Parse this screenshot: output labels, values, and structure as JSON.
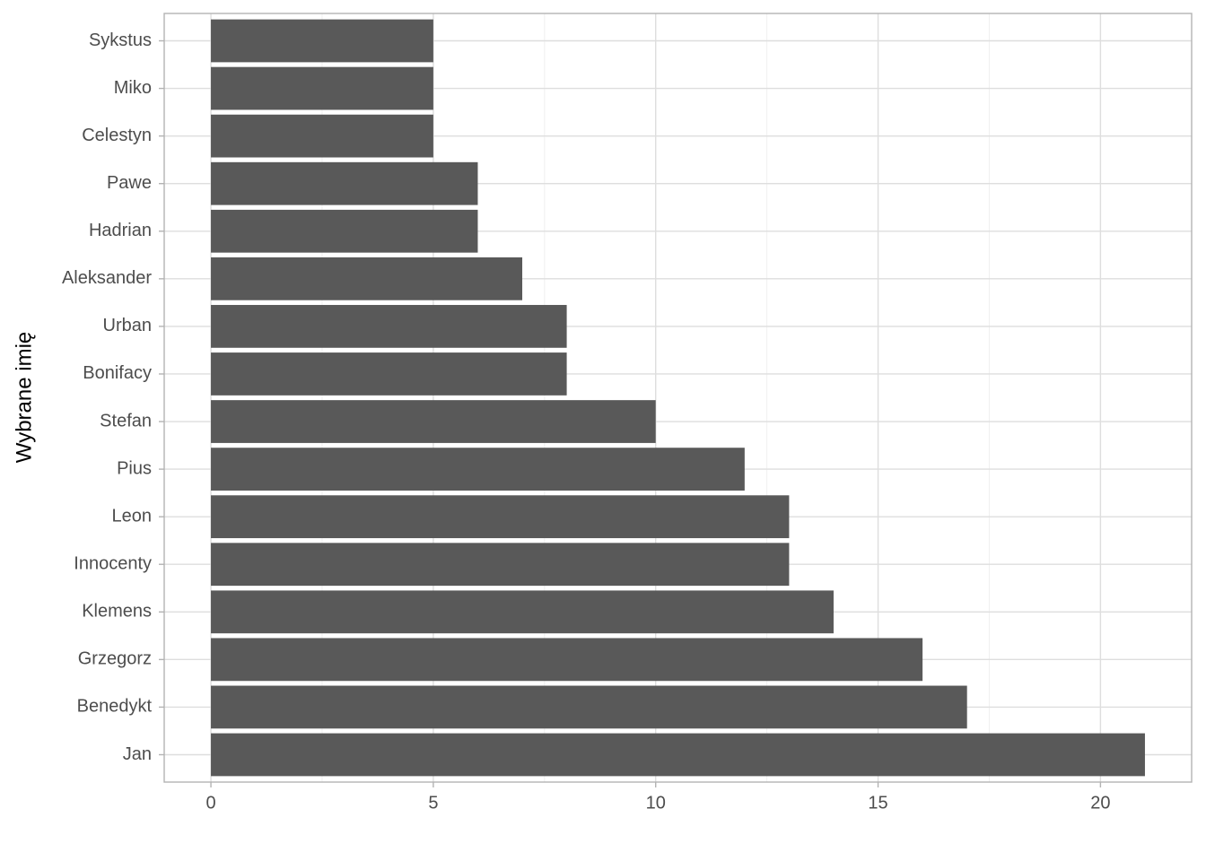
{
  "chart_data": {
    "type": "barh",
    "y_label": "Wybrane imię",
    "categories": [
      "Sykstus",
      "Miko",
      "Celestyn",
      "Pawe",
      "Hadrian",
      "Aleksander",
      "Urban",
      "Bonifacy",
      "Stefan",
      "Pius",
      "Leon",
      "Innocenty",
      "Klemens",
      "Grzegorz",
      "Benedykt",
      "Jan"
    ],
    "values": [
      5,
      5,
      5,
      6,
      6,
      7,
      8,
      8,
      10,
      12,
      13,
      13,
      14,
      16,
      17,
      21
    ],
    "color": "#595959",
    "xlim": [
      -1.05,
      22.05
    ],
    "xticks": [
      0,
      5,
      10,
      15,
      20
    ],
    "grid": true
  }
}
